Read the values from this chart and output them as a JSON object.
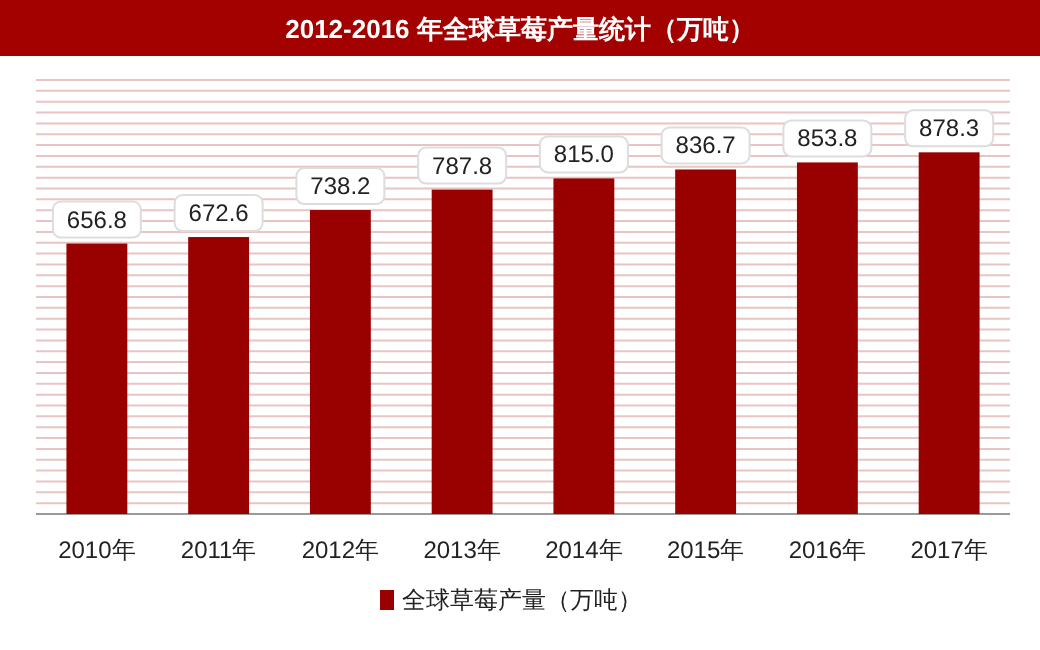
{
  "chart_data": {
    "type": "bar",
    "title": "2012-2016 年全球草莓产量统计（万吨）",
    "categories": [
      "2010年",
      "2011年",
      "2012年",
      "2013年",
      "2014年",
      "2015年",
      "2016年",
      "2017年"
    ],
    "series": [
      {
        "name": "全球草莓产量（万吨）",
        "color": "#990000",
        "values": [
          656.8,
          672.6,
          738.2,
          787.8,
          815.0,
          836.7,
          853.8,
          878.3
        ],
        "value_labels": [
          "656.8",
          "672.6",
          "738.2",
          "787.8",
          "815.0",
          "836.7",
          "853.8",
          "878.3"
        ]
      }
    ],
    "grid": "y",
    "legend": "bottom"
  }
}
